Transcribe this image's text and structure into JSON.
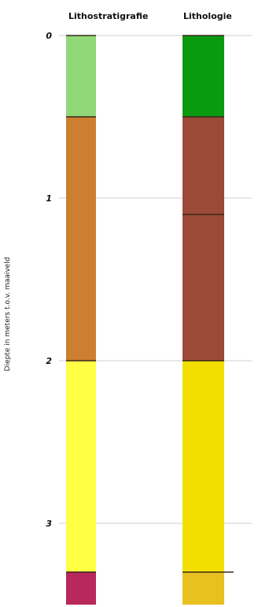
{
  "headers": {
    "lithostratigrafie": "Lithostratigrafie",
    "lithologie": "Lithologie"
  },
  "axis": {
    "ylabel": "Diepte in meters t.o.v. maaiveld",
    "ticks": [
      {
        "value": 0,
        "label": "0"
      },
      {
        "value": 1,
        "label": "1"
      },
      {
        "value": 2,
        "label": "2"
      },
      {
        "value": 3,
        "label": "3"
      }
    ],
    "range": [
      0,
      3.5
    ],
    "grid": true
  },
  "chart_data": {
    "type": "bar",
    "ylabel": "Diepte in meters t.o.v. maaiveld",
    "ylim": [
      0,
      3.5
    ],
    "columns": [
      {
        "name": "Lithostratigrafie",
        "layers": [
          {
            "top": 0.0,
            "bottom": 0.5,
            "color": "#90d878"
          },
          {
            "top": 0.5,
            "bottom": 2.0,
            "color": "#cc7f30"
          },
          {
            "top": 2.0,
            "bottom": 3.3,
            "color": "#ffff44"
          },
          {
            "top": 3.3,
            "bottom": 3.5,
            "color": "#b8285a"
          }
        ]
      },
      {
        "name": "Lithologie",
        "layers": [
          {
            "top": 0.0,
            "bottom": 0.5,
            "color": "#0a9a10"
          },
          {
            "top": 0.5,
            "bottom": 1.1,
            "color": "#9c4a38"
          },
          {
            "top": 1.1,
            "bottom": 2.0,
            "color": "#9c4a38"
          },
          {
            "top": 2.0,
            "bottom": 3.3,
            "color": "#f2df00"
          },
          {
            "top": 3.3,
            "bottom": 3.5,
            "color": "#e8c020"
          }
        ]
      }
    ]
  }
}
